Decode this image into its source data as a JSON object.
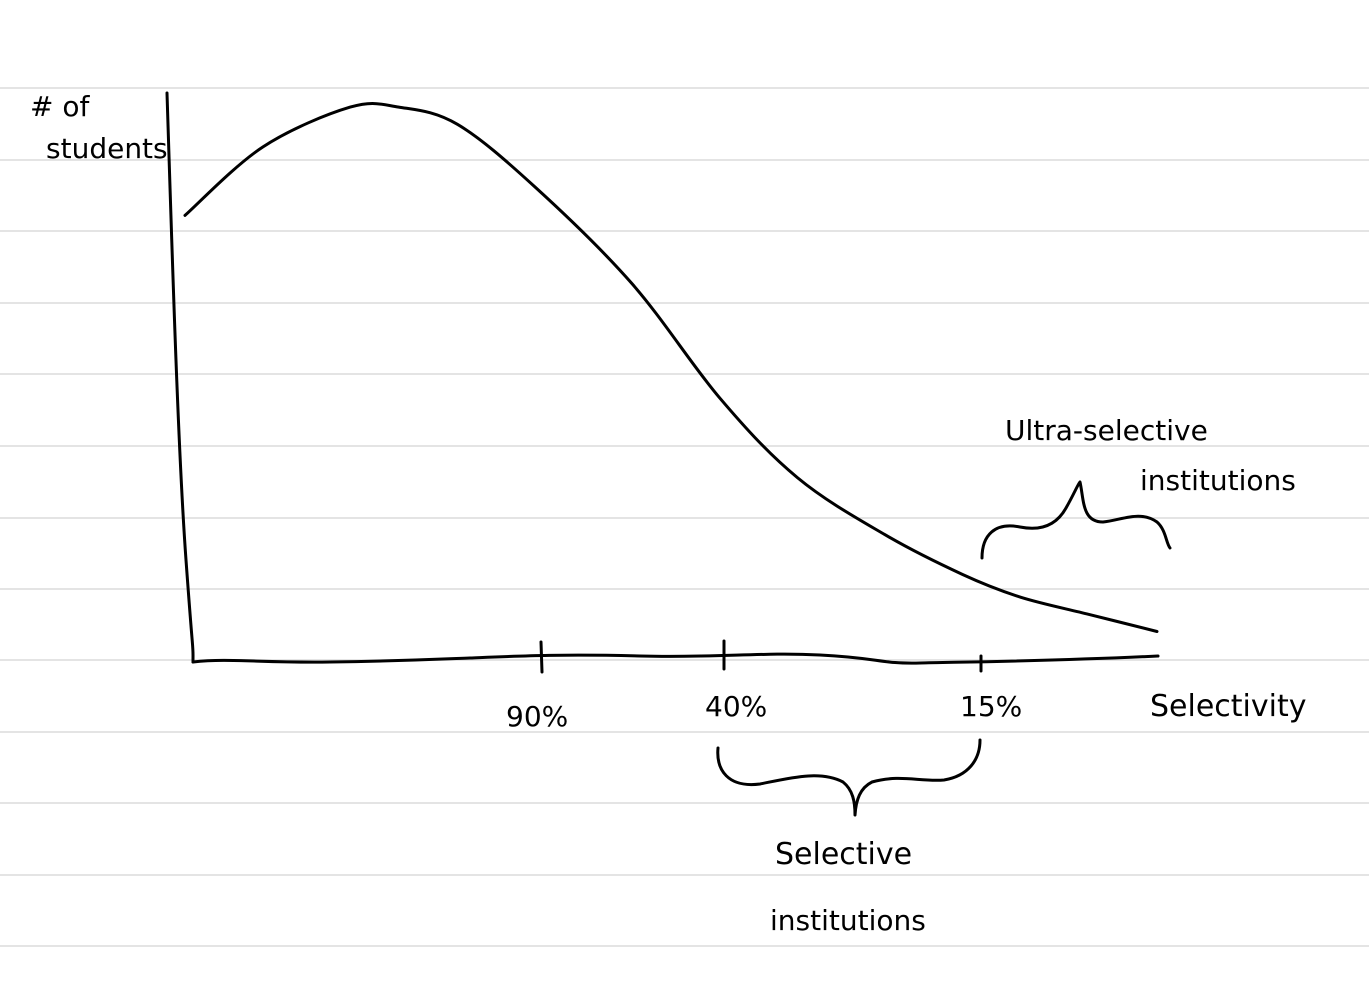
{
  "chart_data": {
    "type": "line",
    "title": "",
    "ylabel_lines": [
      "# of",
      "students"
    ],
    "xlabel": "Selectivity",
    "x_ticks": [
      "90%",
      "40%",
      "15%"
    ],
    "grid": "ruled notebook lines",
    "annotations": [
      {
        "id": "selective",
        "lines": [
          "Selective",
          "institutions"
        ],
        "spans": [
          "40%",
          "15%"
        ],
        "position": "below-axis"
      },
      {
        "id": "ultra",
        "lines": [
          "Ultra-selective",
          "institutions"
        ],
        "spans": [
          "15%",
          "right-end"
        ],
        "position": "above-curve"
      }
    ],
    "series": [
      {
        "note": "hand-drawn curve, relative height 0-1 sampled along the axis",
        "x": [
          0.0,
          0.08,
          0.17,
          0.22,
          0.28,
          0.36,
          0.46,
          0.55,
          0.63,
          0.72,
          0.8,
          0.86,
          0.93,
          1.0
        ],
        "y": [
          0.78,
          0.9,
          0.97,
          0.97,
          0.94,
          0.83,
          0.66,
          0.46,
          0.32,
          0.22,
          0.15,
          0.11,
          0.08,
          0.05
        ]
      }
    ]
  }
}
